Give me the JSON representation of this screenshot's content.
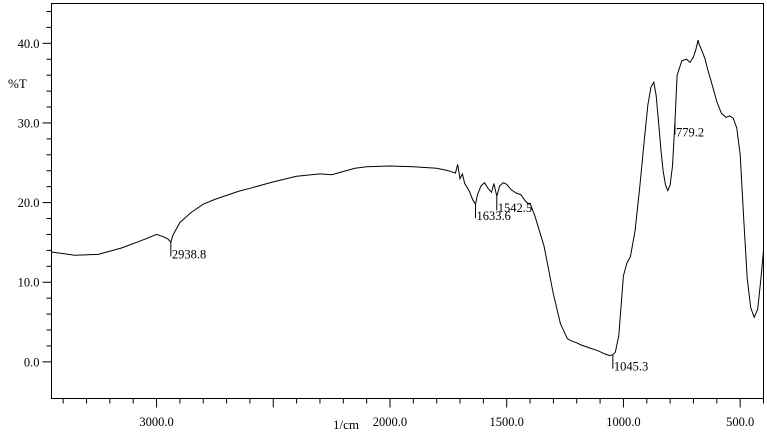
{
  "chart_data": {
    "type": "line",
    "title": "",
    "xlabel": "1/cm",
    "ylabel": "%T",
    "xlim": [
      3450,
      400
    ],
    "ylim": [
      -4.6,
      45.0
    ],
    "x_reversed": true,
    "grid": false,
    "x_ticks": [
      {
        "value": 3000,
        "label": "3000.0"
      },
      {
        "value": 2000,
        "label": "2000.0"
      },
      {
        "value": 1500,
        "label": "1500.0"
      },
      {
        "value": 1000,
        "label": "1000.0"
      },
      {
        "value": 500,
        "label": "500.0"
      }
    ],
    "y_ticks": [
      {
        "value": 0,
        "label": "0.0"
      },
      {
        "value": 10,
        "label": "10.0"
      },
      {
        "value": 20,
        "label": "20.0"
      },
      {
        "value": 30,
        "label": "30.0"
      },
      {
        "value": 40,
        "label": "40.0"
      }
    ],
    "series": [
      {
        "x": [
          3450,
          3350,
          3250,
          3150,
          3050,
          3000,
          2970,
          2950,
          2938.8,
          2930,
          2900,
          2850,
          2800,
          2750,
          2700,
          2650,
          2600,
          2500,
          2400,
          2300,
          2250,
          2200,
          2150,
          2100,
          2000,
          1900,
          1800,
          1750,
          1720,
          1710,
          1700,
          1690,
          1680,
          1660,
          1645,
          1633.6,
          1625,
          1610,
          1595,
          1580,
          1565,
          1555,
          1542.5,
          1530,
          1515,
          1500,
          1480,
          1460,
          1440,
          1420,
          1410,
          1400,
          1380,
          1340,
          1300,
          1270,
          1240,
          1220,
          1200,
          1180,
          1150,
          1110,
          1080,
          1060,
          1045.3,
          1035,
          1020,
          1000,
          985,
          970,
          950,
          930,
          910,
          895,
          882,
          870,
          860,
          850,
          840,
          830,
          820,
          810,
          800,
          790,
          779.2,
          770,
          750,
          730,
          715,
          700,
          690,
          680,
          675,
          670,
          660,
          650,
          640,
          620,
          600,
          580,
          560,
          545,
          530,
          515,
          500,
          485,
          470,
          455,
          440,
          425,
          410,
          400
        ],
        "y": [
          13.8,
          13.4,
          13.5,
          14.3,
          15.4,
          16.0,
          15.7,
          15.4,
          15.0,
          15.9,
          17.5,
          18.8,
          19.8,
          20.4,
          20.9,
          21.4,
          21.8,
          22.6,
          23.3,
          23.6,
          23.5,
          23.9,
          24.3,
          24.5,
          24.6,
          24.5,
          24.3,
          24.0,
          23.7,
          24.8,
          23.0,
          23.6,
          22.4,
          21.4,
          20.3,
          19.8,
          21.0,
          22.1,
          22.5,
          21.8,
          21.3,
          22.4,
          20.8,
          22.1,
          22.5,
          22.3,
          21.6,
          21.2,
          21.0,
          20.2,
          19.9,
          19.9,
          18.4,
          14.5,
          8.5,
          4.8,
          2.9,
          2.6,
          2.4,
          2.1,
          1.8,
          1.4,
          1.0,
          0.8,
          0.9,
          1.2,
          3.3,
          10.8,
          12.4,
          13.2,
          16.5,
          22.0,
          28.0,
          32.3,
          34.5,
          35.1,
          33.5,
          30.2,
          26.8,
          24.0,
          22.2,
          21.5,
          22.2,
          24.6,
          30.3,
          36.0,
          37.8,
          38.0,
          37.6,
          38.3,
          39.2,
          40.4,
          39.8,
          39.5,
          38.8,
          38.0,
          36.8,
          34.8,
          32.7,
          31.2,
          30.7,
          30.9,
          30.6,
          29.4,
          26.0,
          18.0,
          10.5,
          6.8,
          5.6,
          6.6,
          10.8,
          14.0
        ],
        "peak_labels": [
          {
            "x": 2938.8,
            "text": "2938.8"
          },
          {
            "x": 1633.6,
            "text": "1633.6"
          },
          {
            "x": 1542.5,
            "text": "1542.5"
          },
          {
            "x": 1045.3,
            "text": "1045.3"
          },
          {
            "x": 779.2,
            "text": "779.2"
          }
        ]
      }
    ]
  }
}
